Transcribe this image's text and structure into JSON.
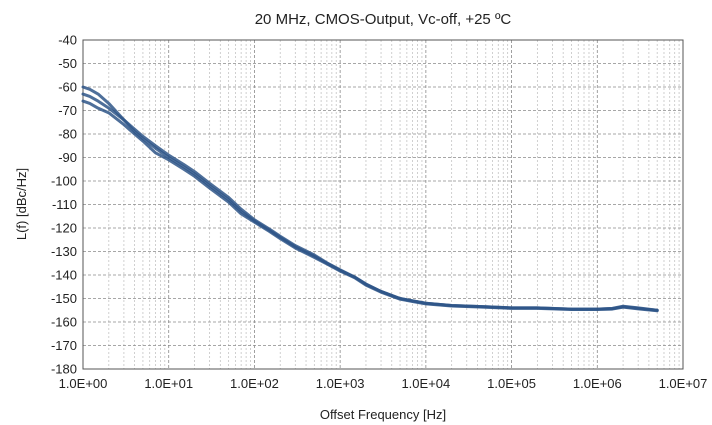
{
  "chart_data": {
    "type": "line",
    "title": "20 MHz, CMOS-Output, Vc-off, +25 ºC",
    "xlabel": "Offset Frequency [Hz]",
    "ylabel": "L(f) [dBc/Hz]",
    "x_scale": "log",
    "xlim": [
      1,
      10000000
    ],
    "ylim": [
      -180,
      -40
    ],
    "x_ticks": [
      1,
      10,
      100,
      1000,
      10000,
      100000,
      1000000,
      10000000
    ],
    "x_tick_labels": [
      "1.0E+00",
      "1.0E+01",
      "1.0E+02",
      "1.0E+03",
      "1.0E+04",
      "1.0E+05",
      "1.0E+06",
      "1.0E+07"
    ],
    "y_ticks": [
      -40,
      -50,
      -60,
      -70,
      -80,
      -90,
      -100,
      -110,
      -120,
      -130,
      -140,
      -150,
      -160,
      -170,
      -180
    ],
    "y_tick_labels": [
      "-40",
      "-50",
      "-60",
      "-70",
      "-80",
      "-90",
      "-100",
      "-110",
      "-120",
      "-130",
      "-140",
      "-150",
      "-160",
      "-170",
      "-180"
    ],
    "grid": true,
    "line_color": "#2f5688",
    "series": [
      {
        "x": [
          1,
          1.2,
          1.5,
          2,
          3,
          4,
          5,
          7,
          10,
          15,
          20,
          30,
          50,
          70,
          100,
          150,
          200,
          300,
          500,
          700,
          1000,
          1500,
          2000,
          3000,
          5000,
          7000,
          10000,
          20000,
          50000,
          100000,
          200000,
          500000,
          1000000,
          1500000,
          2000000,
          3000000,
          5000000
        ],
        "y": [
          -63,
          -64,
          -66,
          -69,
          -74,
          -79,
          -82,
          -86,
          -90,
          -94,
          -97,
          -102,
          -108,
          -113,
          -117,
          -121,
          -124,
          -128,
          -132,
          -135,
          -138,
          -141,
          -144,
          -147,
          -150,
          -151,
          -152,
          -153,
          -153.5,
          -154,
          -154,
          -154.5,
          -154.5,
          -154.3,
          -153.5,
          -154.2,
          -155
        ]
      },
      {
        "x": [
          1,
          1.2,
          1.5,
          2,
          3,
          4,
          5,
          7,
          10,
          15,
          20,
          30,
          50,
          70,
          100,
          150,
          200,
          300,
          500,
          700,
          1000,
          1500,
          2000,
          3000,
          5000,
          7000,
          10000,
          20000,
          50000,
          100000,
          200000,
          500000,
          1000000,
          1500000,
          2000000,
          3000000,
          5000000
        ],
        "y": [
          -60,
          -61,
          -63,
          -67,
          -74,
          -78,
          -81,
          -85,
          -89,
          -93,
          -96,
          -101,
          -107,
          -112,
          -116.5,
          -120.5,
          -123.5,
          -127.5,
          -131.5,
          -134.8,
          -137.8,
          -141,
          -143.8,
          -147,
          -150,
          -151,
          -152,
          -153,
          -153.5,
          -154,
          -154,
          -154.5,
          -154.5,
          -154.2,
          -153.3,
          -154,
          -155
        ]
      },
      {
        "x": [
          1,
          1.2,
          1.5,
          2,
          3,
          4,
          5,
          7,
          10,
          15,
          20,
          30,
          50,
          70,
          100,
          150,
          200,
          300,
          500,
          700,
          1000,
          1500,
          2000,
          3000,
          5000,
          7000,
          10000,
          20000,
          50000,
          100000,
          200000,
          500000,
          1000000,
          1500000,
          2000000,
          3000000,
          5000000
        ],
        "y": [
          -66,
          -67,
          -69,
          -71,
          -76,
          -80,
          -83,
          -88,
          -91,
          -95,
          -98,
          -103,
          -109,
          -114,
          -117.5,
          -121.5,
          -124.5,
          -128.5,
          -132.5,
          -135.3,
          -138.3,
          -141.3,
          -144.3,
          -147.3,
          -150.3,
          -151.3,
          -152.3,
          -153.2,
          -153.7,
          -154.2,
          -154.2,
          -154.7,
          -154.7,
          -154.5,
          -153.7,
          -154.4,
          -155.2
        ]
      }
    ]
  }
}
